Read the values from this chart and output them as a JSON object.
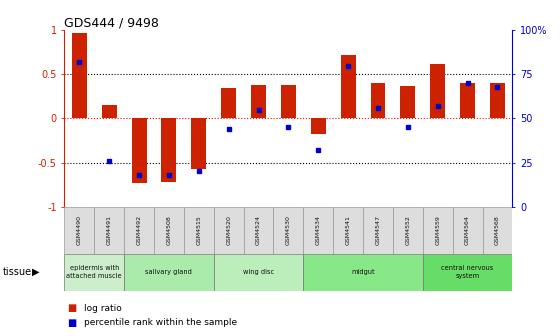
{
  "title": "GDS444 / 9498",
  "samples": [
    "GSM4490",
    "GSM4491",
    "GSM4492",
    "GSM4508",
    "GSM4515",
    "GSM4520",
    "GSM4524",
    "GSM4530",
    "GSM4534",
    "GSM4541",
    "GSM4547",
    "GSM4552",
    "GSM4559",
    "GSM4564",
    "GSM4568"
  ],
  "log_ratio": [
    0.97,
    0.15,
    -0.73,
    -0.72,
    -0.57,
    0.35,
    0.38,
    0.38,
    -0.18,
    0.72,
    0.4,
    0.37,
    0.62,
    0.4,
    0.4
  ],
  "percentile": [
    82,
    26,
    18,
    18,
    20,
    44,
    55,
    45,
    32,
    80,
    56,
    45,
    57,
    70,
    68
  ],
  "tissues": [
    {
      "label": "epidermis with\nattached muscle",
      "start": 0,
      "end": 2,
      "color": "#cceecc"
    },
    {
      "label": "salivary gland",
      "start": 2,
      "end": 5,
      "color": "#aaeaaa"
    },
    {
      "label": "wing disc",
      "start": 5,
      "end": 8,
      "color": "#bbeebb"
    },
    {
      "label": "midgut",
      "start": 8,
      "end": 12,
      "color": "#88e888"
    },
    {
      "label": "central nervous\nsystem",
      "start": 12,
      "end": 15,
      "color": "#66dd66"
    }
  ],
  "bar_color_red": "#cc2200",
  "bar_color_blue": "#0000cc",
  "ylim_left": [
    -1.0,
    1.0
  ],
  "ylim_right": [
    0,
    100
  ],
  "yticks_left": [
    -1,
    -0.5,
    0,
    0.5,
    1
  ],
  "yticks_right": [
    0,
    25,
    50,
    75,
    100
  ],
  "yticklabels_left": [
    "-1",
    "-0.5",
    "0",
    "0.5",
    "1"
  ],
  "yticklabels_right": [
    "0",
    "25",
    "50",
    "75",
    "100%"
  ],
  "bar_width": 0.5,
  "fig_width": 5.6,
  "fig_height": 3.36,
  "fig_dpi": 100
}
